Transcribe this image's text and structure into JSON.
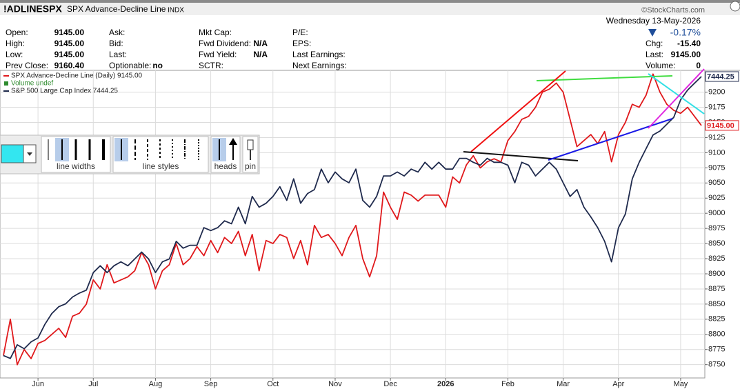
{
  "header": {
    "symbol": "!ADLINESPX",
    "name": "SPX Advance-Decline Line",
    "exchange": "INDX",
    "source": "©StockCharts.com",
    "date": "Wednesday  13-May-2026",
    "change_pct": "-0.17%",
    "columns": [
      [
        {
          "label": "Open:",
          "value": "9145.00"
        },
        {
          "label": "High:",
          "value": "9145.00"
        },
        {
          "label": "Low:",
          "value": "9145.00"
        },
        {
          "label": "Prev Close:",
          "value": "9160.40"
        }
      ],
      [
        {
          "label": "Ask:"
        },
        {
          "label": "Bid:"
        },
        {
          "label": "Last:"
        },
        {
          "label": "Optionable:",
          "value": "no"
        }
      ],
      [
        {
          "label": "Mkt Cap:"
        },
        {
          "label": "Fwd Dividend:",
          "value": "N/A"
        },
        {
          "label": "Fwd Yield:",
          "value": "N/A"
        },
        {
          "label": "SCTR:"
        }
      ],
      [
        {
          "label": "P/E:"
        },
        {
          "label": "EPS:"
        },
        {
          "label": "Last Earnings:"
        },
        {
          "label": "Next Earnings:"
        }
      ]
    ],
    "right": [
      {
        "label": "Chg:",
        "value": "-15.40"
      },
      {
        "label": "Last:",
        "value": "9145.00"
      },
      {
        "label": "Volume:",
        "value": "0"
      }
    ]
  },
  "toolbar": {
    "labels": [
      "line widths",
      "line styles",
      "heads",
      "pin"
    ]
  },
  "chart_data": {
    "type": "line",
    "grid": true,
    "legend_extra": "Volume undef",
    "categories": [
      null,
      null,
      null,
      null,
      null,
      "Jun",
      null,
      null,
      null,
      null,
      null,
      null,
      null,
      "Jul",
      null,
      null,
      null,
      null,
      null,
      null,
      null,
      null,
      "Aug",
      null,
      null,
      null,
      null,
      null,
      null,
      null,
      "Sep",
      null,
      null,
      null,
      null,
      null,
      null,
      null,
      null,
      "Oct",
      null,
      null,
      null,
      null,
      null,
      null,
      null,
      null,
      "Nov",
      null,
      null,
      null,
      null,
      null,
      null,
      null,
      "Dec",
      null,
      null,
      null,
      null,
      null,
      null,
      null,
      "2026",
      null,
      null,
      null,
      null,
      null,
      null,
      null,
      null,
      "Feb",
      null,
      null,
      null,
      null,
      null,
      null,
      null,
      "Mar",
      null,
      null,
      null,
      null,
      null,
      null,
      null,
      "Apr",
      null,
      null,
      null,
      null,
      null,
      null,
      null,
      null,
      "May",
      null,
      null,
      null
    ],
    "ylim": [
      8728,
      9236
    ],
    "yticks": [
      8750,
      8775,
      8800,
      8825,
      8850,
      8875,
      8900,
      8925,
      8950,
      8975,
      9000,
      9025,
      9050,
      9075,
      9100,
      9125,
      9150,
      9175,
      9200
    ],
    "y2lim": [
      5900,
      7476
    ],
    "series": [
      {
        "name": "SPX Advance-Decline Line (Daily) 9145.00",
        "color": "#e0191c",
        "last_label": "9145.00",
        "values": [
          8765,
          8825,
          8750,
          8775,
          8760,
          8785,
          8790,
          8800,
          8810,
          8795,
          8830,
          8835,
          8850,
          8890,
          8875,
          8915,
          8885,
          8890,
          8895,
          8905,
          8935,
          8915,
          8875,
          8905,
          8915,
          8950,
          8915,
          8925,
          8945,
          8930,
          8955,
          8935,
          8960,
          8950,
          8970,
          8930,
          8965,
          8905,
          8955,
          8950,
          8965,
          8960,
          8925,
          8955,
          8915,
          8980,
          8960,
          8965,
          8950,
          8930,
          8960,
          8980,
          8925,
          8895,
          8930,
          9035,
          9010,
          8990,
          9035,
          9030,
          9020,
          9030,
          9030,
          9030,
          9010,
          9060,
          9050,
          9080,
          9095,
          9075,
          9085,
          9090,
          9085,
          9120,
          9135,
          9155,
          9160,
          9175,
          9200,
          9205,
          9215,
          9200,
          9155,
          9110,
          9120,
          9130,
          9115,
          9135,
          9085,
          9130,
          9150,
          9180,
          9175,
          9195,
          9230,
          9200,
          9180,
          9170,
          9165,
          9175,
          9160,
          9145
        ]
      },
      {
        "name": "S&P 500 Large Cap Index 7444.25",
        "color": "#1f2a4d",
        "axis": "y2",
        "last_label": "7444.25",
        "values": [
          6015,
          6000,
          6070,
          6050,
          6085,
          6105,
          6175,
          6230,
          6265,
          6280,
          6315,
          6335,
          6350,
          6440,
          6475,
          6440,
          6475,
          6495,
          6475,
          6510,
          6545,
          6510,
          6440,
          6495,
          6510,
          6600,
          6565,
          6580,
          6580,
          6670,
          6655,
          6670,
          6705,
          6690,
          6775,
          6690,
          6830,
          6775,
          6795,
          6830,
          6880,
          6810,
          6920,
          6795,
          6845,
          6865,
          6970,
          6900,
          6955,
          6920,
          6900,
          6970,
          6810,
          6775,
          6830,
          6935,
          6935,
          6955,
          6935,
          6970,
          6955,
          7005,
          6970,
          7005,
          6970,
          6970,
          7025,
          7025,
          7005,
          6990,
          7025,
          7005,
          7005,
          6990,
          6900,
          7005,
          6990,
          6935,
          6970,
          7005,
          6970,
          6900,
          6830,
          6865,
          6775,
          6725,
          6670,
          6600,
          6495,
          6670,
          6740,
          6920,
          7005,
          7075,
          7145,
          7165,
          7200,
          7235,
          7325,
          7375,
          7410,
          7444.25
        ]
      }
    ]
  }
}
